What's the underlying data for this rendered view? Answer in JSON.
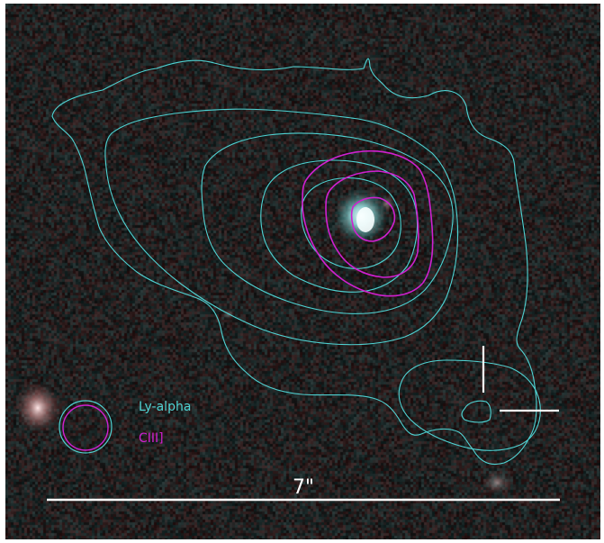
{
  "image": {
    "background": "#101516",
    "contour_colors": {
      "lya": "#4fd3d3",
      "ciii": "#d020d0"
    },
    "marker_color": "#ffffff"
  },
  "legend": {
    "items": [
      {
        "label": "Ly-alpha",
        "color": "#4fd3d3"
      },
      {
        "label": "CIII]",
        "color": "#d020d0"
      }
    ]
  },
  "scale_bar": {
    "label": "7\""
  }
}
